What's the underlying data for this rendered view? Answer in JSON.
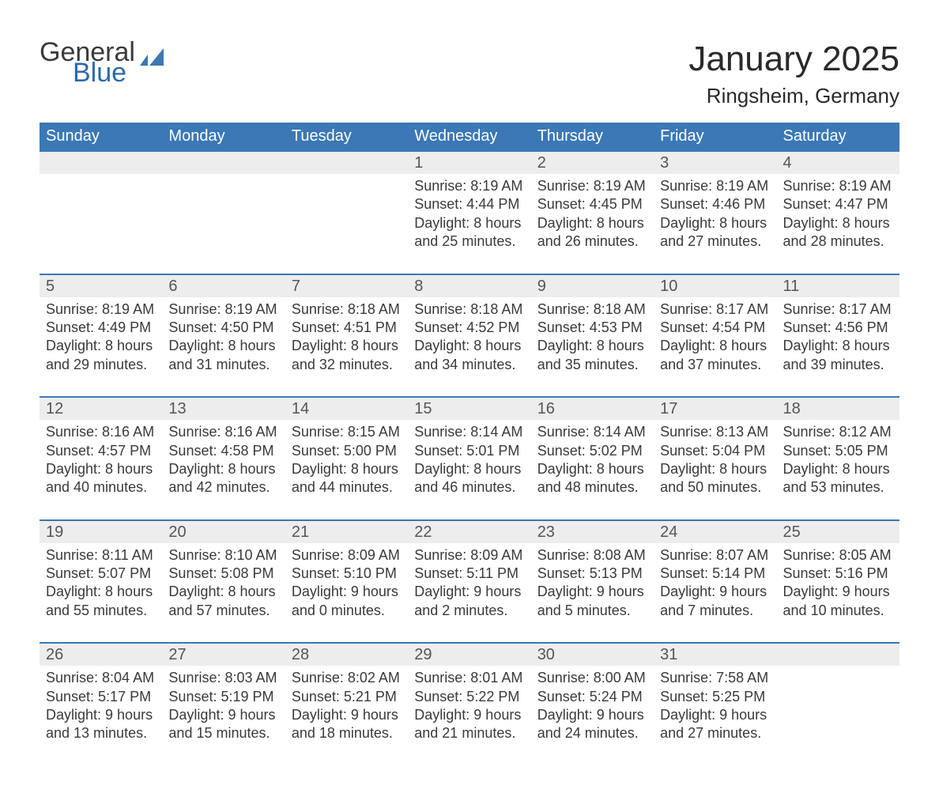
{
  "logo": {
    "general": "General",
    "blue": "Blue",
    "flag_color": "#3b78b5"
  },
  "title": "January 2025",
  "location": "Ringsheim, Germany",
  "colors": {
    "header_bg": "#3b78b5",
    "header_text": "#ffffff",
    "daynum_bg": "#ededed",
    "row_border": "#3b78b5",
    "body_text": "#3a3a3a",
    "daynum_text": "#555555",
    "page_bg": "#ffffff"
  },
  "layout": {
    "columns": 7,
    "week_rows": 5
  },
  "typography": {
    "title_fontsize": 44,
    "location_fontsize": 26,
    "header_fontsize": 20,
    "daynum_fontsize": 20,
    "cell_fontsize": 18
  },
  "day_headers": [
    "Sunday",
    "Monday",
    "Tuesday",
    "Wednesday",
    "Thursday",
    "Friday",
    "Saturday"
  ],
  "weeks": [
    [
      {
        "num": "",
        "lines": [
          "",
          "",
          "",
          ""
        ]
      },
      {
        "num": "",
        "lines": [
          "",
          "",
          "",
          ""
        ]
      },
      {
        "num": "",
        "lines": [
          "",
          "",
          "",
          ""
        ]
      },
      {
        "num": "1",
        "lines": [
          "Sunrise: 8:19 AM",
          "Sunset: 4:44 PM",
          "Daylight: 8 hours",
          "and 25 minutes."
        ]
      },
      {
        "num": "2",
        "lines": [
          "Sunrise: 8:19 AM",
          "Sunset: 4:45 PM",
          "Daylight: 8 hours",
          "and 26 minutes."
        ]
      },
      {
        "num": "3",
        "lines": [
          "Sunrise: 8:19 AM",
          "Sunset: 4:46 PM",
          "Daylight: 8 hours",
          "and 27 minutes."
        ]
      },
      {
        "num": "4",
        "lines": [
          "Sunrise: 8:19 AM",
          "Sunset: 4:47 PM",
          "Daylight: 8 hours",
          "and 28 minutes."
        ]
      }
    ],
    [
      {
        "num": "5",
        "lines": [
          "Sunrise: 8:19 AM",
          "Sunset: 4:49 PM",
          "Daylight: 8 hours",
          "and 29 minutes."
        ]
      },
      {
        "num": "6",
        "lines": [
          "Sunrise: 8:19 AM",
          "Sunset: 4:50 PM",
          "Daylight: 8 hours",
          "and 31 minutes."
        ]
      },
      {
        "num": "7",
        "lines": [
          "Sunrise: 8:18 AM",
          "Sunset: 4:51 PM",
          "Daylight: 8 hours",
          "and 32 minutes."
        ]
      },
      {
        "num": "8",
        "lines": [
          "Sunrise: 8:18 AM",
          "Sunset: 4:52 PM",
          "Daylight: 8 hours",
          "and 34 minutes."
        ]
      },
      {
        "num": "9",
        "lines": [
          "Sunrise: 8:18 AM",
          "Sunset: 4:53 PM",
          "Daylight: 8 hours",
          "and 35 minutes."
        ]
      },
      {
        "num": "10",
        "lines": [
          "Sunrise: 8:17 AM",
          "Sunset: 4:54 PM",
          "Daylight: 8 hours",
          "and 37 minutes."
        ]
      },
      {
        "num": "11",
        "lines": [
          "Sunrise: 8:17 AM",
          "Sunset: 4:56 PM",
          "Daylight: 8 hours",
          "and 39 minutes."
        ]
      }
    ],
    [
      {
        "num": "12",
        "lines": [
          "Sunrise: 8:16 AM",
          "Sunset: 4:57 PM",
          "Daylight: 8 hours",
          "and 40 minutes."
        ]
      },
      {
        "num": "13",
        "lines": [
          "Sunrise: 8:16 AM",
          "Sunset: 4:58 PM",
          "Daylight: 8 hours",
          "and 42 minutes."
        ]
      },
      {
        "num": "14",
        "lines": [
          "Sunrise: 8:15 AM",
          "Sunset: 5:00 PM",
          "Daylight: 8 hours",
          "and 44 minutes."
        ]
      },
      {
        "num": "15",
        "lines": [
          "Sunrise: 8:14 AM",
          "Sunset: 5:01 PM",
          "Daylight: 8 hours",
          "and 46 minutes."
        ]
      },
      {
        "num": "16",
        "lines": [
          "Sunrise: 8:14 AM",
          "Sunset: 5:02 PM",
          "Daylight: 8 hours",
          "and 48 minutes."
        ]
      },
      {
        "num": "17",
        "lines": [
          "Sunrise: 8:13 AM",
          "Sunset: 5:04 PM",
          "Daylight: 8 hours",
          "and 50 minutes."
        ]
      },
      {
        "num": "18",
        "lines": [
          "Sunrise: 8:12 AM",
          "Sunset: 5:05 PM",
          "Daylight: 8 hours",
          "and 53 minutes."
        ]
      }
    ],
    [
      {
        "num": "19",
        "lines": [
          "Sunrise: 8:11 AM",
          "Sunset: 5:07 PM",
          "Daylight: 8 hours",
          "and 55 minutes."
        ]
      },
      {
        "num": "20",
        "lines": [
          "Sunrise: 8:10 AM",
          "Sunset: 5:08 PM",
          "Daylight: 8 hours",
          "and 57 minutes."
        ]
      },
      {
        "num": "21",
        "lines": [
          "Sunrise: 8:09 AM",
          "Sunset: 5:10 PM",
          "Daylight: 9 hours",
          "and 0 minutes."
        ]
      },
      {
        "num": "22",
        "lines": [
          "Sunrise: 8:09 AM",
          "Sunset: 5:11 PM",
          "Daylight: 9 hours",
          "and 2 minutes."
        ]
      },
      {
        "num": "23",
        "lines": [
          "Sunrise: 8:08 AM",
          "Sunset: 5:13 PM",
          "Daylight: 9 hours",
          "and 5 minutes."
        ]
      },
      {
        "num": "24",
        "lines": [
          "Sunrise: 8:07 AM",
          "Sunset: 5:14 PM",
          "Daylight: 9 hours",
          "and 7 minutes."
        ]
      },
      {
        "num": "25",
        "lines": [
          "Sunrise: 8:05 AM",
          "Sunset: 5:16 PM",
          "Daylight: 9 hours",
          "and 10 minutes."
        ]
      }
    ],
    [
      {
        "num": "26",
        "lines": [
          "Sunrise: 8:04 AM",
          "Sunset: 5:17 PM",
          "Daylight: 9 hours",
          "and 13 minutes."
        ]
      },
      {
        "num": "27",
        "lines": [
          "Sunrise: 8:03 AM",
          "Sunset: 5:19 PM",
          "Daylight: 9 hours",
          "and 15 minutes."
        ]
      },
      {
        "num": "28",
        "lines": [
          "Sunrise: 8:02 AM",
          "Sunset: 5:21 PM",
          "Daylight: 9 hours",
          "and 18 minutes."
        ]
      },
      {
        "num": "29",
        "lines": [
          "Sunrise: 8:01 AM",
          "Sunset: 5:22 PM",
          "Daylight: 9 hours",
          "and 21 minutes."
        ]
      },
      {
        "num": "30",
        "lines": [
          "Sunrise: 8:00 AM",
          "Sunset: 5:24 PM",
          "Daylight: 9 hours",
          "and 24 minutes."
        ]
      },
      {
        "num": "31",
        "lines": [
          "Sunrise: 7:58 AM",
          "Sunset: 5:25 PM",
          "Daylight: 9 hours",
          "and 27 minutes."
        ]
      },
      {
        "num": "",
        "lines": [
          "",
          "",
          "",
          ""
        ]
      }
    ]
  ]
}
